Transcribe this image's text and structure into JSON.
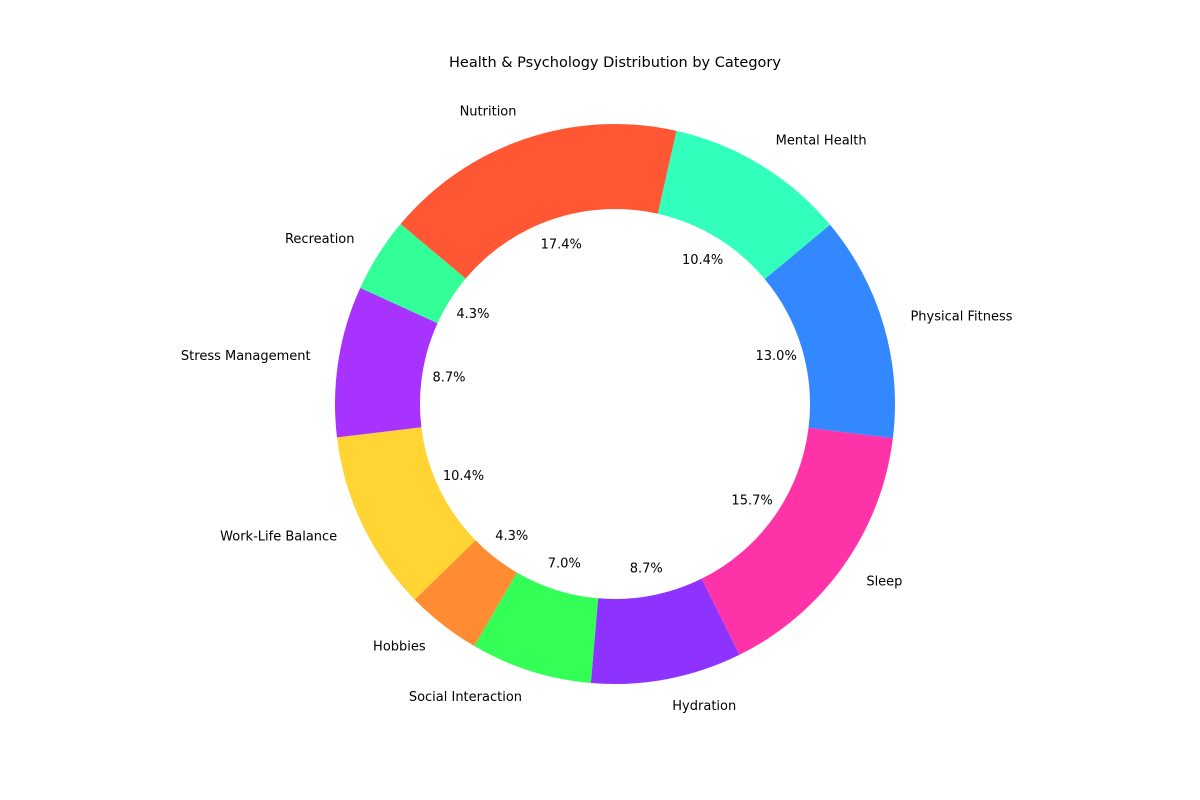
{
  "chart_data": {
    "type": "pie",
    "title": "Health & Psychology Distribution by Category",
    "categories": [
      "Nutrition",
      "Mental Health",
      "Physical Fitness",
      "Sleep",
      "Hydration",
      "Social Interaction",
      "Hobbies",
      "Work-Life Balance",
      "Stress Management",
      "Recreation"
    ],
    "values": [
      17.4,
      10.4,
      13.0,
      15.7,
      8.7,
      7.0,
      4.3,
      10.4,
      8.7,
      4.3
    ],
    "value_labels": [
      "17.4%",
      "10.4%",
      "13.0%",
      "15.7%",
      "8.7%",
      "7.0%",
      "4.3%",
      "10.4%",
      "8.7%",
      "4.3%"
    ],
    "colors": [
      "#FF5733",
      "#33FFBD",
      "#3388FF",
      "#FF33A8",
      "#8E33FF",
      "#33FF57",
      "#FF8C33",
      "#FFD433",
      "#A833FF",
      "#33FF99"
    ],
    "hole": true,
    "legend": "none"
  }
}
